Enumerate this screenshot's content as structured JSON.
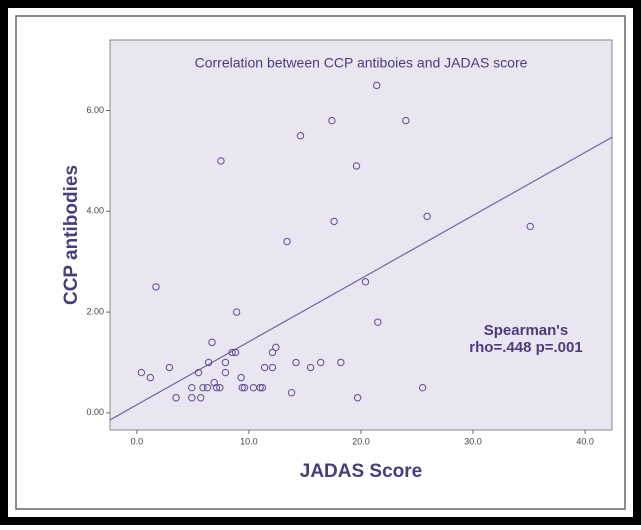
{
  "chart_data": {
    "type": "scatter",
    "title": "Correlation between CCP antiboies and JADAS score",
    "x_label": "JADAS Score",
    "y_label": "CCP antibodies",
    "annotations": [
      "Spearman's",
      "rho=.448 p=.001"
    ],
    "color": "#5e4f8f",
    "line_color": "#6f64a0",
    "background": "#e9e6f1",
    "xlim": [
      -2.4,
      42.4
    ],
    "ylim": [
      -0.34,
      7.4
    ],
    "xticks": [
      {
        "value": 0,
        "label": "0.0"
      },
      {
        "value": 10,
        "label": "10.0"
      },
      {
        "value": 20,
        "label": "20.0"
      },
      {
        "value": 30,
        "label": "30.0"
      },
      {
        "value": 40,
        "label": "40.0"
      }
    ],
    "yticks": [
      {
        "value": 0,
        "label": "0.00"
      },
      {
        "value": 2,
        "label": "2.00"
      },
      {
        "value": 4,
        "label": "4.00"
      },
      {
        "value": 6,
        "label": "6.00"
      }
    ],
    "x": [
      21.4,
      17.4,
      24.0,
      14.6,
      7.5,
      19.6,
      17.6,
      25.9,
      13.4,
      35.1,
      1.7,
      20.4,
      8.9,
      21.5,
      6.7,
      8.5,
      8.8,
      12.4,
      12.1,
      6.4,
      7.9,
      14.2,
      16.4,
      18.2,
      2.9,
      11.4,
      12.1,
      15.5,
      0.4,
      5.5,
      7.9,
      1.2,
      9.3,
      6.9,
      4.9,
      5.9,
      6.3,
      7.1,
      7.4,
      9.4,
      9.6,
      10.4,
      11.0,
      11.2,
      25.5,
      3.5,
      4.9,
      5.7,
      13.8,
      19.7
    ],
    "values": [
      6.5,
      5.8,
      5.8,
      5.5,
      5.0,
      4.9,
      3.8,
      3.9,
      3.4,
      3.7,
      2.5,
      2.6,
      2.0,
      1.8,
      1.4,
      1.2,
      1.2,
      1.3,
      1.2,
      1.0,
      1.0,
      1.0,
      1.0,
      1.0,
      0.9,
      0.9,
      0.9,
      0.9,
      0.8,
      0.8,
      0.8,
      0.7,
      0.7,
      0.6,
      0.5,
      0.5,
      0.5,
      0.5,
      0.5,
      0.5,
      0.5,
      0.5,
      0.5,
      0.5,
      0.5,
      0.3,
      0.3,
      0.3,
      0.4,
      0.3
    ],
    "fit_line": {
      "x": [
        -2.4,
        42.4
      ],
      "y": [
        -0.14,
        5.47
      ]
    }
  }
}
